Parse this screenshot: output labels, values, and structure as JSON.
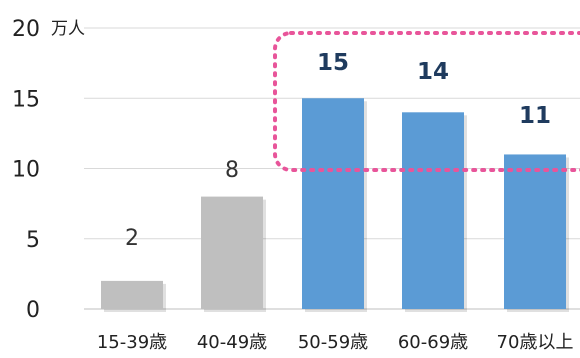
{
  "chart_data": {
    "type": "bar",
    "unit": "万人",
    "categories": [
      "15-39歳",
      "40-49歳",
      "50-59歳",
      "60-69歳",
      "70歳以上"
    ],
    "values": [
      2,
      8,
      15,
      14,
      11
    ],
    "data_labels": [
      "2",
      "8",
      "15",
      "14",
      "11"
    ],
    "ylim": [
      0,
      20
    ],
    "yticks": [
      "0",
      "5",
      "10",
      "15",
      "20"
    ],
    "grid": true,
    "highlighted": [
      false,
      false,
      true,
      true,
      true
    ],
    "colors": {
      "normal": "#bfbfbf",
      "highlight": "#5b9bd5",
      "highlight_box": "#e8559a",
      "grid": "#d9d9d9",
      "label_dark": "#1f3b5e"
    },
    "annotation": {
      "type": "dotted-box",
      "around": [
        "50-59歳",
        "60-69歳",
        "70歳以上"
      ]
    }
  }
}
